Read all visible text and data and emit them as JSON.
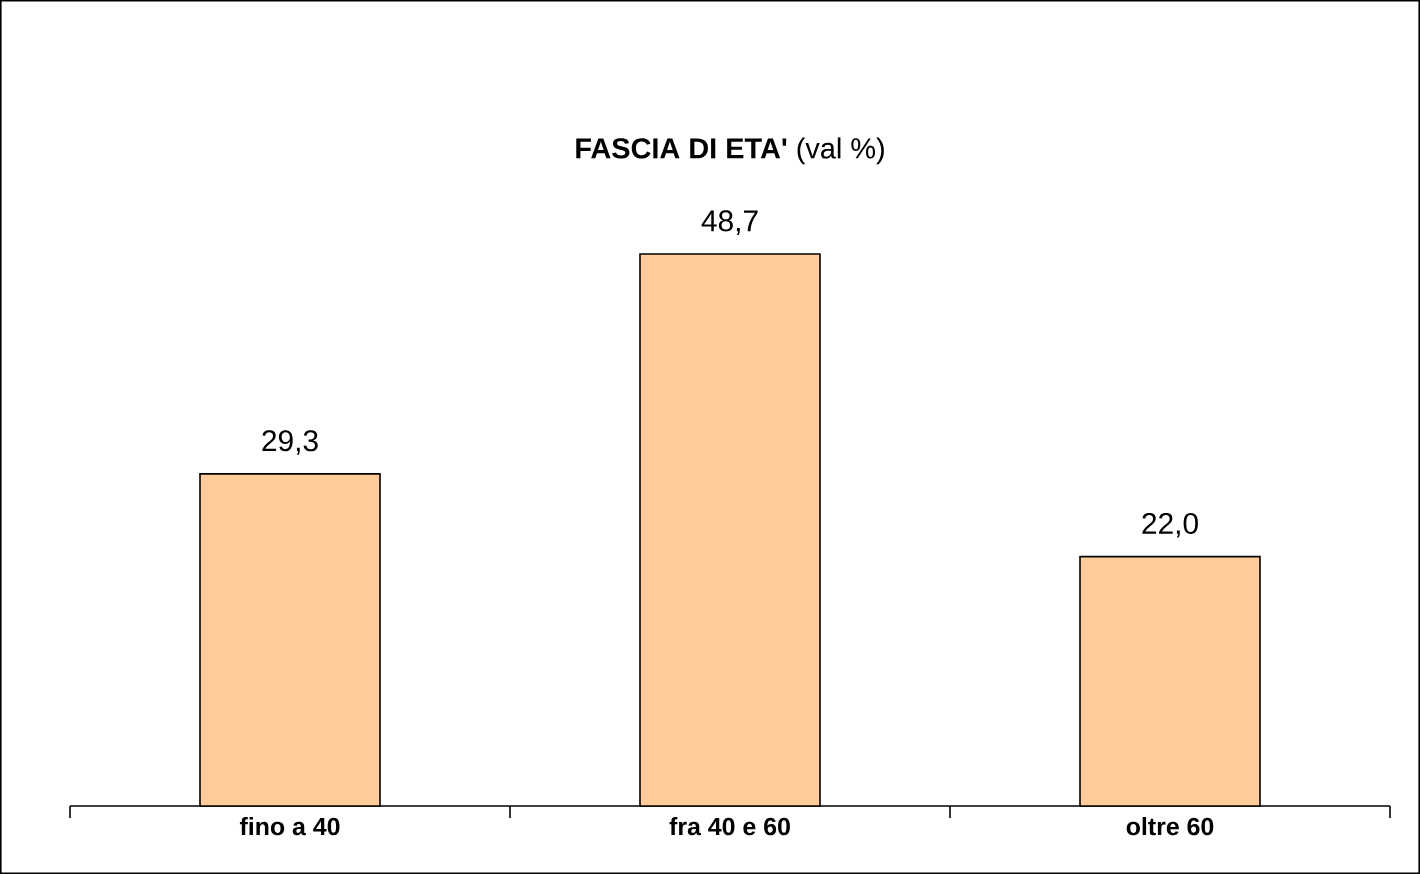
{
  "chart_data": {
    "type": "bar",
    "title": "**FASCIA DI ETA'** (val %)",
    "categories": [
      "fino a 40",
      "fra 40 e 60",
      "oltre 60"
    ],
    "values": [
      29.3,
      48.7,
      22.0
    ],
    "value_labels": [
      "29,3",
      "48,7",
      "22,0"
    ],
    "color": "#ffcc99"
  }
}
